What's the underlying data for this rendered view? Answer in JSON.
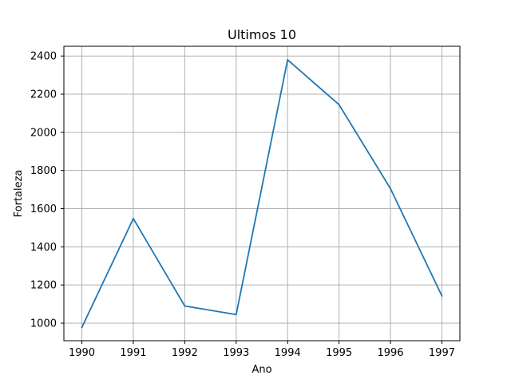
{
  "chart_data": {
    "type": "line",
    "title": "Ultimos 10",
    "xlabel": "Ano",
    "ylabel": "Fortaleza",
    "x": [
      1990,
      1991,
      1992,
      1993,
      1994,
      1995,
      1996,
      1997
    ],
    "series": [
      {
        "values": [
          978,
          1548,
          1090,
          1045,
          2380,
          2145,
          1705,
          1143
        ]
      }
    ],
    "xlim": [
      1989.65,
      1997.35
    ],
    "ylim": [
      908,
      2451
    ],
    "xticks": [
      1990,
      1991,
      1992,
      1993,
      1994,
      1995,
      1996,
      1997
    ],
    "yticks": [
      1000,
      1200,
      1400,
      1600,
      1800,
      2000,
      2200,
      2400
    ],
    "grid": true,
    "colors": {
      "line": "#1f77b4",
      "grid": "#b0b0b0",
      "axis": "#000000"
    }
  }
}
